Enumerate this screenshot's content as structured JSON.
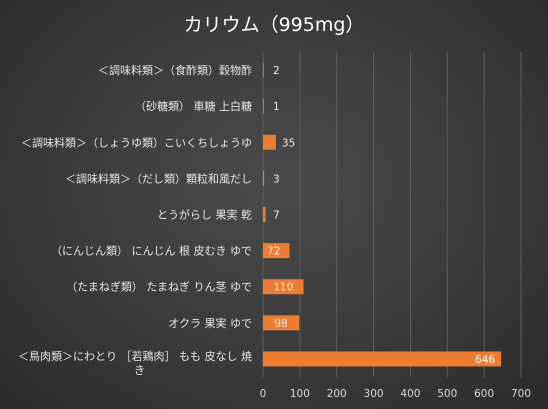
{
  "chart_data": {
    "type": "bar",
    "orientation": "horizontal",
    "title": "カリウム（995mg）",
    "categories": [
      "＜調味料類＞（食酢類）穀物酢",
      "（砂糖類） 車糖 上白糖",
      "＜調味料類＞（しょうゆ類）こいくちしょうゆ",
      "＜調味料類＞（だし類）顆粒和風だし",
      "とうがらし 果実 乾",
      "（にんじん類） にんじん 根 皮むき ゆで",
      "（たまねぎ類） たまねぎ りん茎 ゆで",
      "オクラ 果実 ゆで",
      "＜鳥肉類＞にわとり ［若鶏肉］ もも 皮なし 焼き"
    ],
    "values": [
      2,
      1,
      35,
      3,
      7,
      72,
      110,
      98,
      646
    ],
    "xlim": [
      0,
      700
    ],
    "xticks": [
      0,
      100,
      200,
      300,
      400,
      500,
      600,
      700
    ],
    "grid": true,
    "bar_color": "#ed7d31",
    "background_color": "#404040"
  }
}
